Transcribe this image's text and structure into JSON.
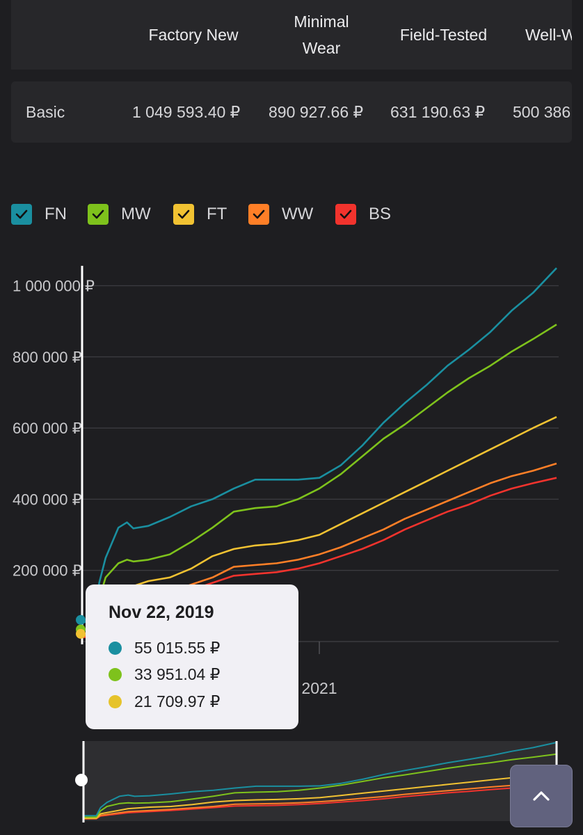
{
  "table": {
    "headers": [
      "",
      "Factory New",
      "Minimal\nWear",
      "Field-Tested",
      "Well-W"
    ],
    "rows": [
      {
        "label": "Basic",
        "values": [
          "1 049 593.40 ₽",
          "890 927.66 ₽",
          "631 190.63 ₽",
          "500 386"
        ]
      }
    ]
  },
  "legend": [
    {
      "label": "FN",
      "color": "#1a8fa0",
      "checked": true
    },
    {
      "label": "MW",
      "color": "#7ec21c",
      "checked": true
    },
    {
      "label": "FT",
      "color": "#f1c232",
      "checked": true
    },
    {
      "label": "WW",
      "color": "#ff7f27",
      "checked": true
    },
    {
      "label": "BS",
      "color": "#f2332d",
      "checked": true
    }
  ],
  "tooltip": {
    "date": "Nov 22, 2019",
    "items": [
      {
        "value": "55 015.55 ₽",
        "color": "#1a8fa0"
      },
      {
        "value": "33 951.04 ₽",
        "color": "#7ec21c"
      },
      {
        "value": "21 709.97 ₽",
        "color": "#e6c32b"
      }
    ]
  },
  "chart_data": {
    "type": "line",
    "title": "",
    "xlabel": "",
    "ylabel": "",
    "x_tick_labels": [
      "2021"
    ],
    "y_tick_labels": [
      "200 000 ₽",
      "400 000 ₽",
      "600 000 ₽",
      "800 000 ₽",
      "1 000 000 ₽"
    ],
    "y_ticks": [
      200000,
      400000,
      600000,
      800000,
      1000000
    ],
    "ylim": [
      0,
      1050000
    ],
    "xlim": [
      2019.89,
      2022.11
    ],
    "grid": true,
    "crosshair_x": 2019.89,
    "series": [
      {
        "name": "FN",
        "color": "#1a8fa0",
        "x": [
          2019.89,
          2019.95,
          2019.97,
          2020.0,
          2020.06,
          2020.1,
          2020.13,
          2020.2,
          2020.3,
          2020.4,
          2020.5,
          2020.6,
          2020.7,
          2020.76,
          2020.9,
          2021.0,
          2021.1,
          2021.2,
          2021.3,
          2021.4,
          2021.5,
          2021.6,
          2021.7,
          2021.8,
          2021.9,
          2022.0,
          2022.11
        ],
        "values": [
          55016,
          55000,
          165000,
          235000,
          320000,
          335000,
          318000,
          325000,
          350000,
          380000,
          400000,
          430000,
          455000,
          455000,
          455000,
          460000,
          495000,
          550000,
          615000,
          670000,
          720000,
          775000,
          820000,
          870000,
          930000,
          980000,
          1049593
        ]
      },
      {
        "name": "MW",
        "color": "#7ec21c",
        "x": [
          2019.89,
          2019.95,
          2019.97,
          2020.0,
          2020.06,
          2020.1,
          2020.13,
          2020.2,
          2020.3,
          2020.4,
          2020.5,
          2020.6,
          2020.7,
          2020.8,
          2020.9,
          2021.0,
          2021.1,
          2021.2,
          2021.3,
          2021.4,
          2021.5,
          2021.6,
          2021.7,
          2021.8,
          2021.9,
          2022.0,
          2022.11
        ],
        "values": [
          33951,
          34000,
          120000,
          180000,
          220000,
          230000,
          225000,
          230000,
          245000,
          280000,
          320000,
          365000,
          375000,
          380000,
          400000,
          430000,
          470000,
          520000,
          570000,
          610000,
          655000,
          700000,
          740000,
          775000,
          815000,
          850000,
          890928
        ]
      },
      {
        "name": "FT",
        "color": "#f1c232",
        "x": [
          2019.89,
          2019.95,
          2019.97,
          2020.1,
          2020.2,
          2020.3,
          2020.4,
          2020.5,
          2020.6,
          2020.7,
          2020.8,
          2020.9,
          2021.0,
          2021.1,
          2021.2,
          2021.3,
          2021.4,
          2021.5,
          2021.6,
          2021.7,
          2021.8,
          2021.9,
          2022.0,
          2022.11
        ],
        "values": [
          21710,
          22000,
          80000,
          150000,
          170000,
          180000,
          205000,
          240000,
          260000,
          270000,
          275000,
          285000,
          300000,
          330000,
          360000,
          390000,
          420000,
          450000,
          480000,
          510000,
          540000,
          570000,
          600000,
          631191
        ]
      },
      {
        "name": "WW",
        "color": "#ff7f27",
        "x": [
          2019.89,
          2019.95,
          2019.97,
          2020.1,
          2020.3,
          2020.5,
          2020.6,
          2020.7,
          2020.8,
          2020.9,
          2021.0,
          2021.1,
          2021.2,
          2021.3,
          2021.4,
          2021.5,
          2021.6,
          2021.7,
          2021.8,
          2021.9,
          2022.0,
          2022.11
        ],
        "values": [
          15000,
          16000,
          60000,
          110000,
          140000,
          180000,
          210000,
          215000,
          220000,
          230000,
          245000,
          265000,
          290000,
          315000,
          345000,
          370000,
          395000,
          420000,
          445000,
          465000,
          480000,
          500386
        ]
      },
      {
        "name": "BS",
        "color": "#f2332d",
        "x": [
          2019.89,
          2019.95,
          2019.97,
          2020.1,
          2020.3,
          2020.5,
          2020.6,
          2020.7,
          2020.8,
          2020.9,
          2021.0,
          2021.1,
          2021.2,
          2021.3,
          2021.4,
          2021.5,
          2021.6,
          2021.7,
          2021.8,
          2021.9,
          2022.0,
          2022.11
        ],
        "values": [
          12000,
          13000,
          50000,
          95000,
          125000,
          165000,
          185000,
          190000,
          195000,
          205000,
          220000,
          240000,
          260000,
          285000,
          315000,
          340000,
          365000,
          385000,
          410000,
          430000,
          445000,
          460000
        ]
      }
    ]
  }
}
